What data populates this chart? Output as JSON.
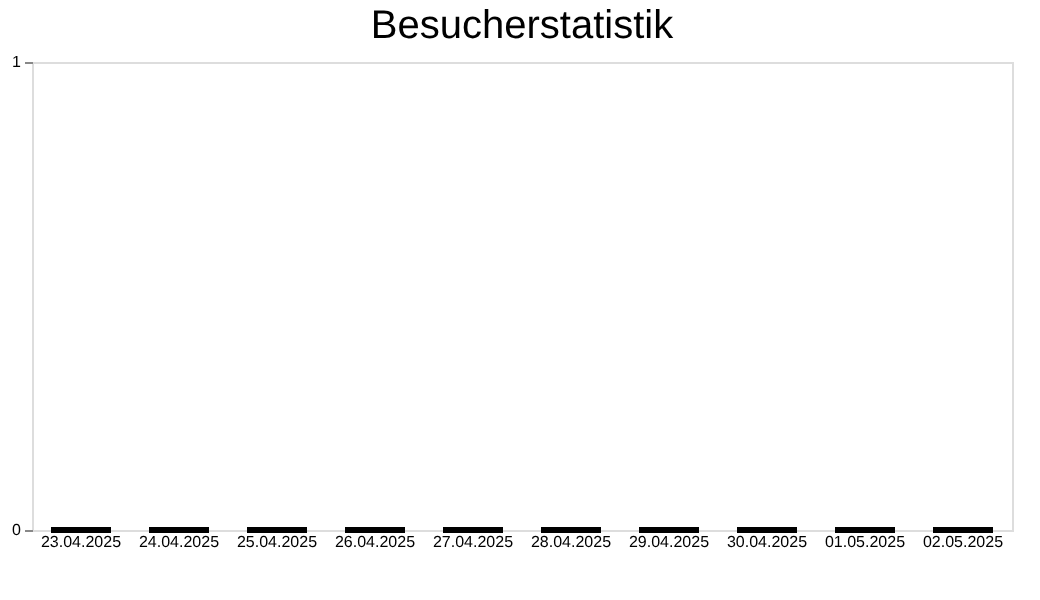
{
  "chart_data": {
    "type": "bar",
    "title": "Besucherstatistik",
    "categories": [
      "23.04.2025",
      "24.04.2025",
      "25.04.2025",
      "26.04.2025",
      "27.04.2025",
      "28.04.2025",
      "29.04.2025",
      "30.04.2025",
      "01.05.2025",
      "02.05.2025"
    ],
    "values": [
      0,
      0,
      0,
      0,
      0,
      0,
      0,
      0,
      0,
      0
    ],
    "color": "#000000",
    "ylim": [
      0,
      1
    ],
    "yticks": [
      0,
      1
    ],
    "grid": false
  }
}
